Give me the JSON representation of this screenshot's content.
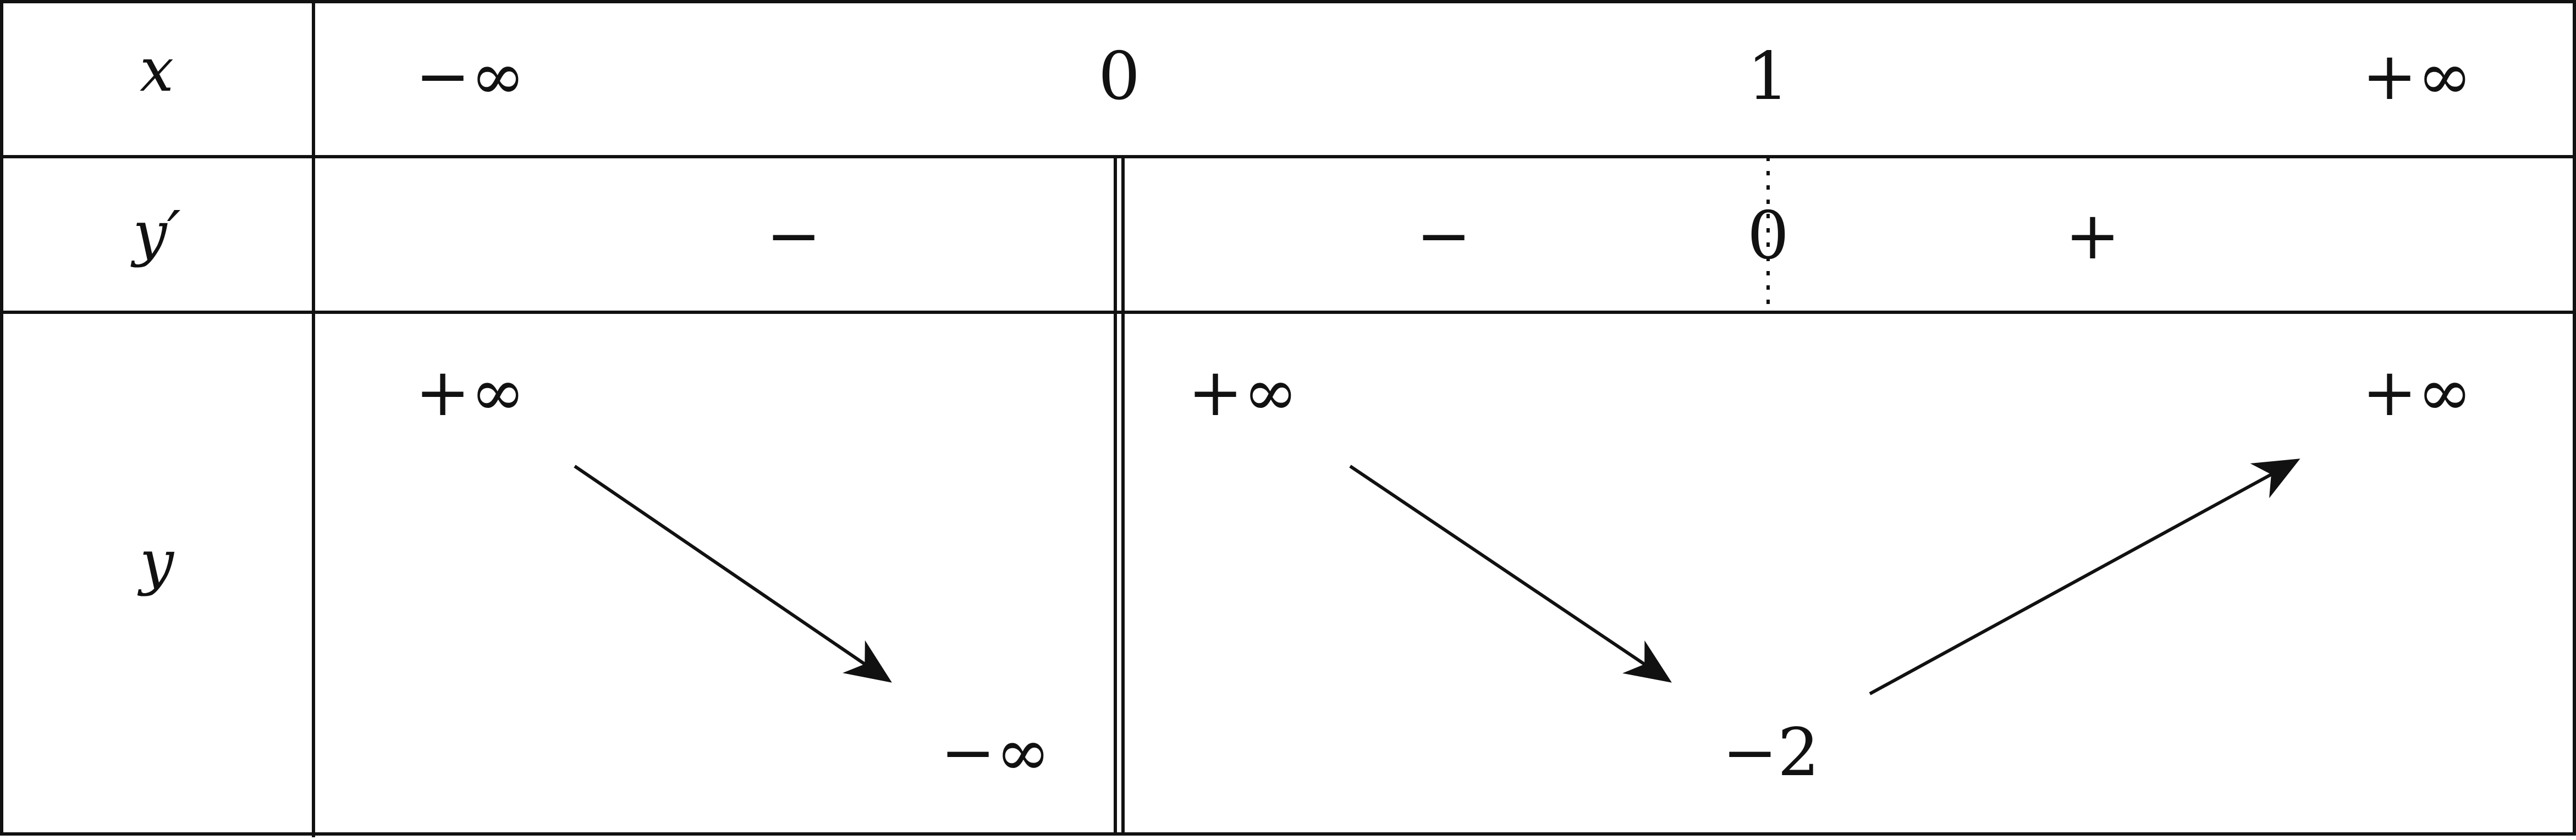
{
  "table": {
    "row_labels": {
      "x": "x",
      "yprime": "y′",
      "y": "y"
    },
    "x_values": [
      "−∞",
      "0",
      "1",
      "+∞"
    ],
    "derivative": {
      "sign_1": "−",
      "sign_2": "−",
      "zero_at_1": "0",
      "sign_3": "+"
    },
    "variation": {
      "top_left": "+∞",
      "bottom_before_0": "−∞",
      "top_after_0": "+∞",
      "min_at_1": "−2",
      "top_right": "+∞"
    },
    "arrows": [
      "decreasing",
      "decreasing",
      "increasing"
    ],
    "undefined_at": "0"
  },
  "colors": {
    "line": "#111111",
    "background": "#ffffff"
  }
}
